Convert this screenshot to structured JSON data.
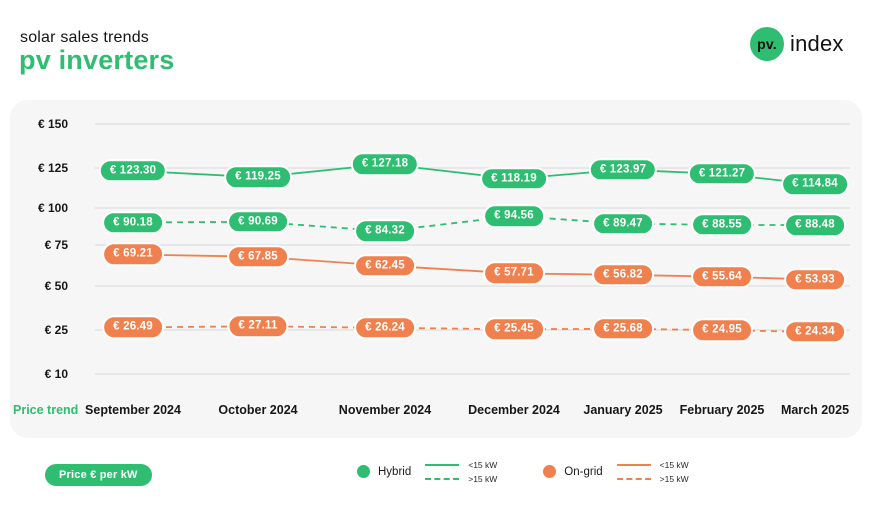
{
  "header": {
    "subtitle": "solar sales trends",
    "title": "pv inverters",
    "logo": {
      "circle_text": "pv.",
      "text": "index"
    }
  },
  "colors": {
    "green": "#2fbe71",
    "orange": "#f0814e",
    "panel_bg": "#f6f6f6",
    "grid_line": "#e2e2e2",
    "text_dark": "#17171a"
  },
  "chart_data": {
    "type": "line",
    "title": "pv inverters",
    "subtitle": "solar sales trends",
    "unit_label": "Price € per kW",
    "x_axis_title": "Price trend",
    "currency_prefix": "€",
    "categories": [
      "September 2024",
      "October 2024",
      "November 2024",
      "December 2024",
      "January 2025",
      "February 2025",
      "March 2025"
    ],
    "y_ticks": [
      150,
      125,
      100,
      75,
      50,
      25,
      10
    ],
    "ylim": [
      10,
      150
    ],
    "grid": true,
    "legend_position": "bottom",
    "series": [
      {
        "group": "Hybrid",
        "size": "<15 kW",
        "style": "solid",
        "color": "#2fbe71",
        "values": [
          123.3,
          119.25,
          127.18,
          118.19,
          123.97,
          121.27,
          114.84
        ]
      },
      {
        "group": "Hybrid",
        "size": ">15 kW",
        "style": "dashed",
        "color": "#2fbe71",
        "values": [
          90.18,
          90.69,
          84.32,
          94.56,
          89.47,
          88.55,
          88.48
        ]
      },
      {
        "group": "On-grid",
        "size": "<15 kW",
        "style": "solid",
        "color": "#f0814e",
        "values": [
          69.21,
          67.85,
          62.45,
          57.71,
          56.82,
          55.64,
          53.93
        ]
      },
      {
        "group": "On-grid",
        "size": ">15 kW",
        "style": "dashed",
        "color": "#f0814e",
        "values": [
          26.49,
          27.11,
          26.24,
          25.45,
          25.68,
          24.95,
          24.34
        ]
      }
    ],
    "legend": {
      "groups": [
        {
          "name": "Hybrid",
          "color": "#2fbe71",
          "entries": [
            {
              "style": "solid",
              "label": "<15 kW"
            },
            {
              "style": "dashed",
              "label": ">15 kW"
            }
          ]
        },
        {
          "name": "On-grid",
          "color": "#f0814e",
          "entries": [
            {
              "style": "solid",
              "label": "<15 kW"
            },
            {
              "style": "dashed",
              "label": ">15 kW"
            }
          ]
        }
      ]
    }
  }
}
